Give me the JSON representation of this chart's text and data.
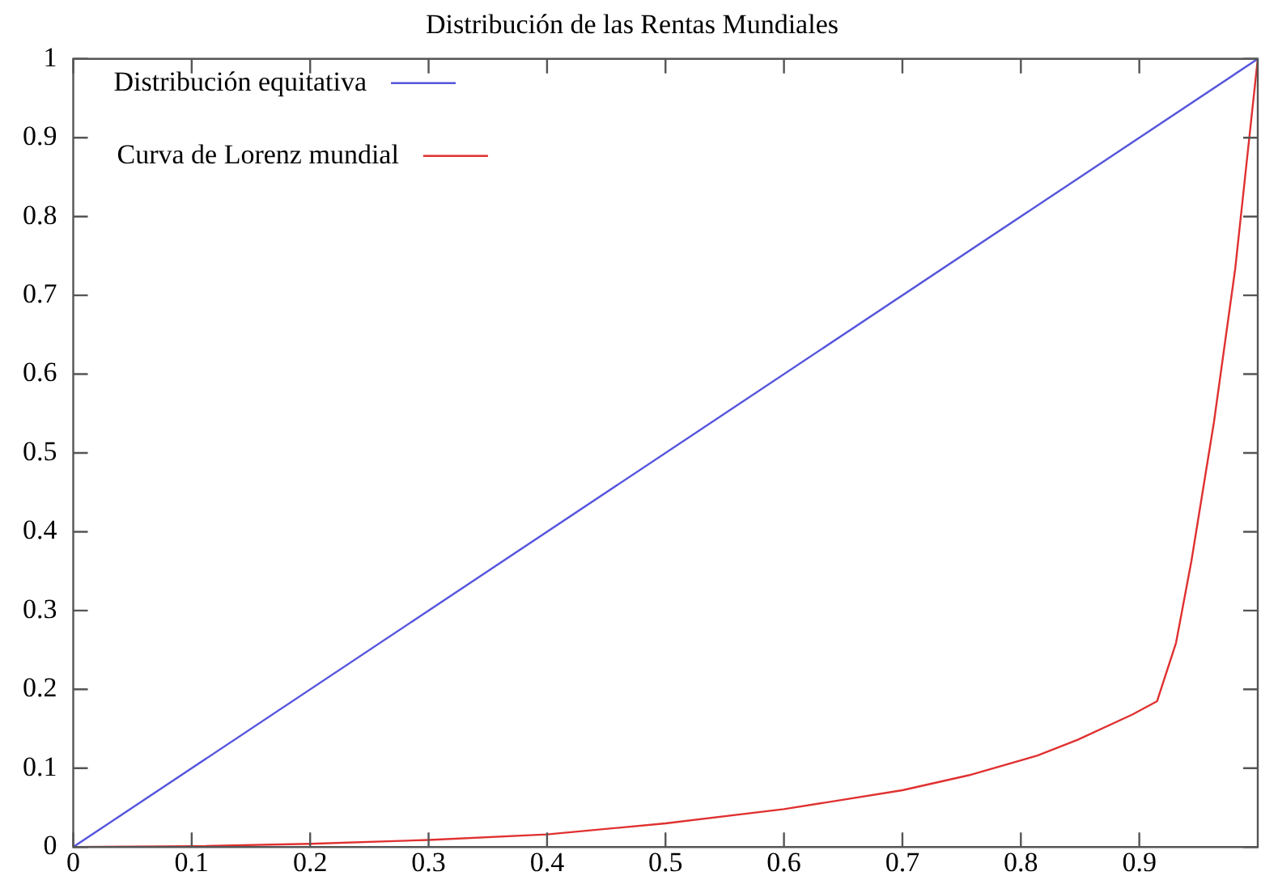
{
  "chart_data": {
    "type": "line",
    "title": "Distribución de las Rentas Mundiales",
    "xlim": [
      0,
      1
    ],
    "xticks": [
      0,
      0.1,
      0.2,
      0.3,
      0.4,
      0.5,
      0.6,
      0.7,
      0.8,
      0.9
    ],
    "ylim": [
      0,
      1
    ],
    "yticks": [
      0,
      0.1,
      0.2,
      0.3,
      0.4,
      0.5,
      0.6,
      0.7,
      0.8,
      0.9,
      1
    ],
    "grid": false,
    "legend": "top left",
    "marker": "none",
    "line_style": "solid",
    "series": [
      {
        "name": "Distribución equitativa",
        "color": "#5555dd",
        "x": [
          0,
          1
        ],
        "values": [
          0,
          1
        ]
      },
      {
        "name": "Curva de Lorenz mundial",
        "color": "#e03030",
        "x": [
          0,
          0.1,
          0.2,
          0.3,
          0.4,
          0.5,
          0.6,
          0.7,
          0.756,
          0.814,
          0.848,
          0.894,
          0.915,
          0.931,
          0.944,
          0.963,
          0.981,
          1
        ],
        "values": [
          0,
          0.001,
          0.004,
          0.009,
          0.016,
          0.03,
          0.048,
          0.072,
          0.091,
          0.116,
          0.136,
          0.168,
          0.185,
          0.259,
          0.363,
          0.539,
          0.734,
          1
        ]
      }
    ]
  }
}
